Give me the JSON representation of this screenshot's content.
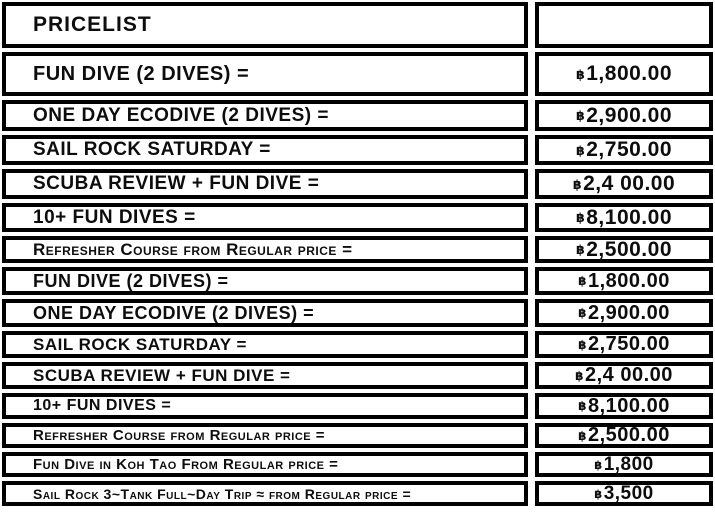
{
  "title": "PRICELIST",
  "currency_symbol": "฿",
  "pricelist": {
    "rows": [
      {
        "label": "FUN DIVE (2 DIVES)  =",
        "price": "1,800.00"
      },
      {
        "label": "ONE DAY ECODIVE (2 DIVES) =",
        "price": "2,900.00"
      },
      {
        "label": "SAIL ROCK SATURDAY =",
        "price": "2,750.00"
      },
      {
        "label": "SCUBA REVIEW + FUN DIVE =",
        "price": "2,4 00.00"
      },
      {
        "label": "10+ FUN DIVES =",
        "price": "8,100.00"
      },
      {
        "label": "Refresher Course from Regular price =",
        "price": "2,500.00"
      },
      {
        "label": "FUN DIVE (2 DIVES) =",
        "price": "1,800.00"
      },
      {
        "label": "ONE DAY ECODIVE (2 DIVES) =",
        "price": "2,900.00"
      },
      {
        "label": "SAIL ROCK SATURDAY =",
        "price": "2,750.00"
      },
      {
        "label": "SCUBA REVIEW + FUN DIVE =",
        "price": "2,4 00.00"
      },
      {
        "label": "10+ FUN DIVES =",
        "price": "8,100.00"
      },
      {
        "label": "Refresher Course from Regular price =",
        "price": "2,500.00"
      },
      {
        "label": "Fun Dive in Koh Tao From Regular price =",
        "price": "1,800"
      },
      {
        "label": "Sail Rock 3~Tank Full~Day Trip ≈ from Regular price =",
        "price": "3,500"
      }
    ]
  }
}
